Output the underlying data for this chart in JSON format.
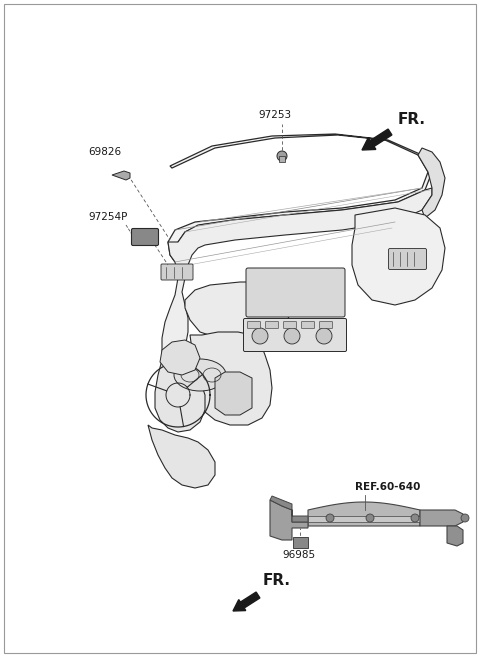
{
  "bg_color": "#ffffff",
  "line_color": "#2a2a2a",
  "gray_fill": "#d0d0d0",
  "light_gray": "#e8e8e8",
  "mid_gray": "#b0b0b0",
  "dark_gray": "#808080",
  "label_69826": "69826",
  "label_97254P": "97254P",
  "label_97253": "97253",
  "label_96985": "96985",
  "label_REF": "REF.60-640",
  "label_FR1": "FR.",
  "label_FR2": "FR.",
  "figsize": [
    4.8,
    6.57
  ],
  "dpi": 100
}
